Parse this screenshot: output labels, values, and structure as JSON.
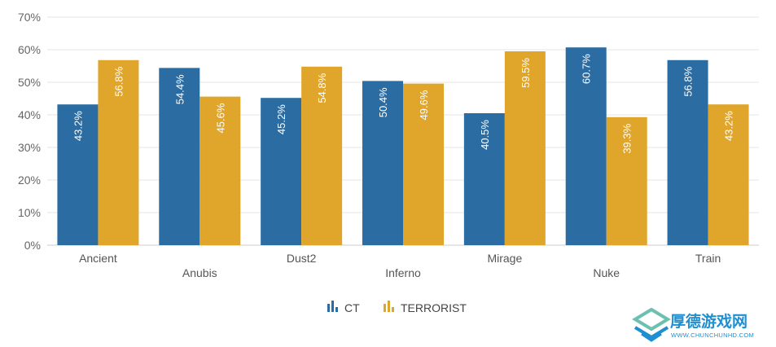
{
  "chart_data": {
    "type": "bar",
    "categories": [
      "Ancient",
      "Anubis",
      "Dust2",
      "Inferno",
      "Mirage",
      "Nuke",
      "Train"
    ],
    "series": [
      {
        "name": "CT",
        "values": [
          43.2,
          54.4,
          45.2,
          50.4,
          40.5,
          60.7,
          56.8
        ],
        "color": "#2b6ca3"
      },
      {
        "name": "TERRORIST",
        "values": [
          56.8,
          45.6,
          54.8,
          49.6,
          59.5,
          39.3,
          43.2
        ],
        "color": "#e0a52b"
      }
    ],
    "data_labels": [
      [
        "43.2%",
        "54.4%",
        "45.2%",
        "50.4%",
        "40.5%",
        "60.7%",
        "56.8%"
      ],
      [
        "56.8%",
        "45.6%",
        "54.8%",
        "49.6%",
        "59.5%",
        "39.3%",
        "43.2%"
      ]
    ],
    "y_ticks": [
      "0%",
      "10%",
      "20%",
      "30%",
      "40%",
      "50%",
      "60%",
      "70%"
    ],
    "ylim": [
      0,
      70
    ],
    "y_tick_step": 10,
    "grid": true,
    "legend": {
      "position": "bottom-center",
      "icon": "bar-chart-icon"
    },
    "title": "",
    "xlabel": "",
    "ylabel": ""
  },
  "watermark": {
    "title": "厚德游戏网",
    "url": "WWW.CHUNCHUNHD.COM",
    "icon": "layered-s-logo-icon",
    "colors": {
      "primary": "#1e8fd0",
      "secondary": "#6cc0b0"
    }
  }
}
